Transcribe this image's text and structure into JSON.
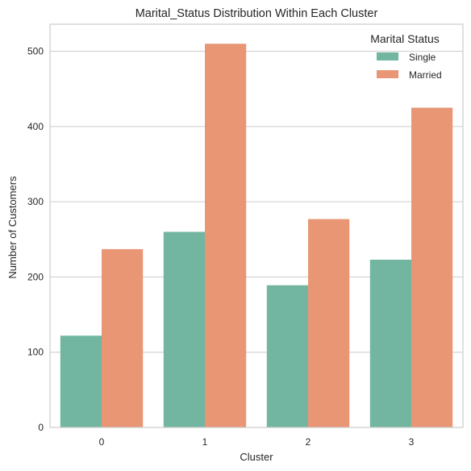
{
  "chart_data": {
    "type": "bar",
    "title": "Marital_Status Distribution Within Each Cluster",
    "xlabel": "Cluster",
    "ylabel": "Number of Customers",
    "categories": [
      "0",
      "1",
      "2",
      "3"
    ],
    "series": [
      {
        "name": "Single",
        "color": "#72b6a1",
        "values": [
          122,
          260,
          189,
          223
        ]
      },
      {
        "name": "Married",
        "color": "#e99675",
        "values": [
          237,
          510,
          277,
          425
        ]
      }
    ],
    "ylim": [
      0,
      536
    ],
    "yticks": [
      "0",
      "100",
      "200",
      "300",
      "400",
      "500"
    ],
    "grid": true,
    "legend": {
      "title": "Marital Status",
      "placement": "top-right"
    }
  }
}
